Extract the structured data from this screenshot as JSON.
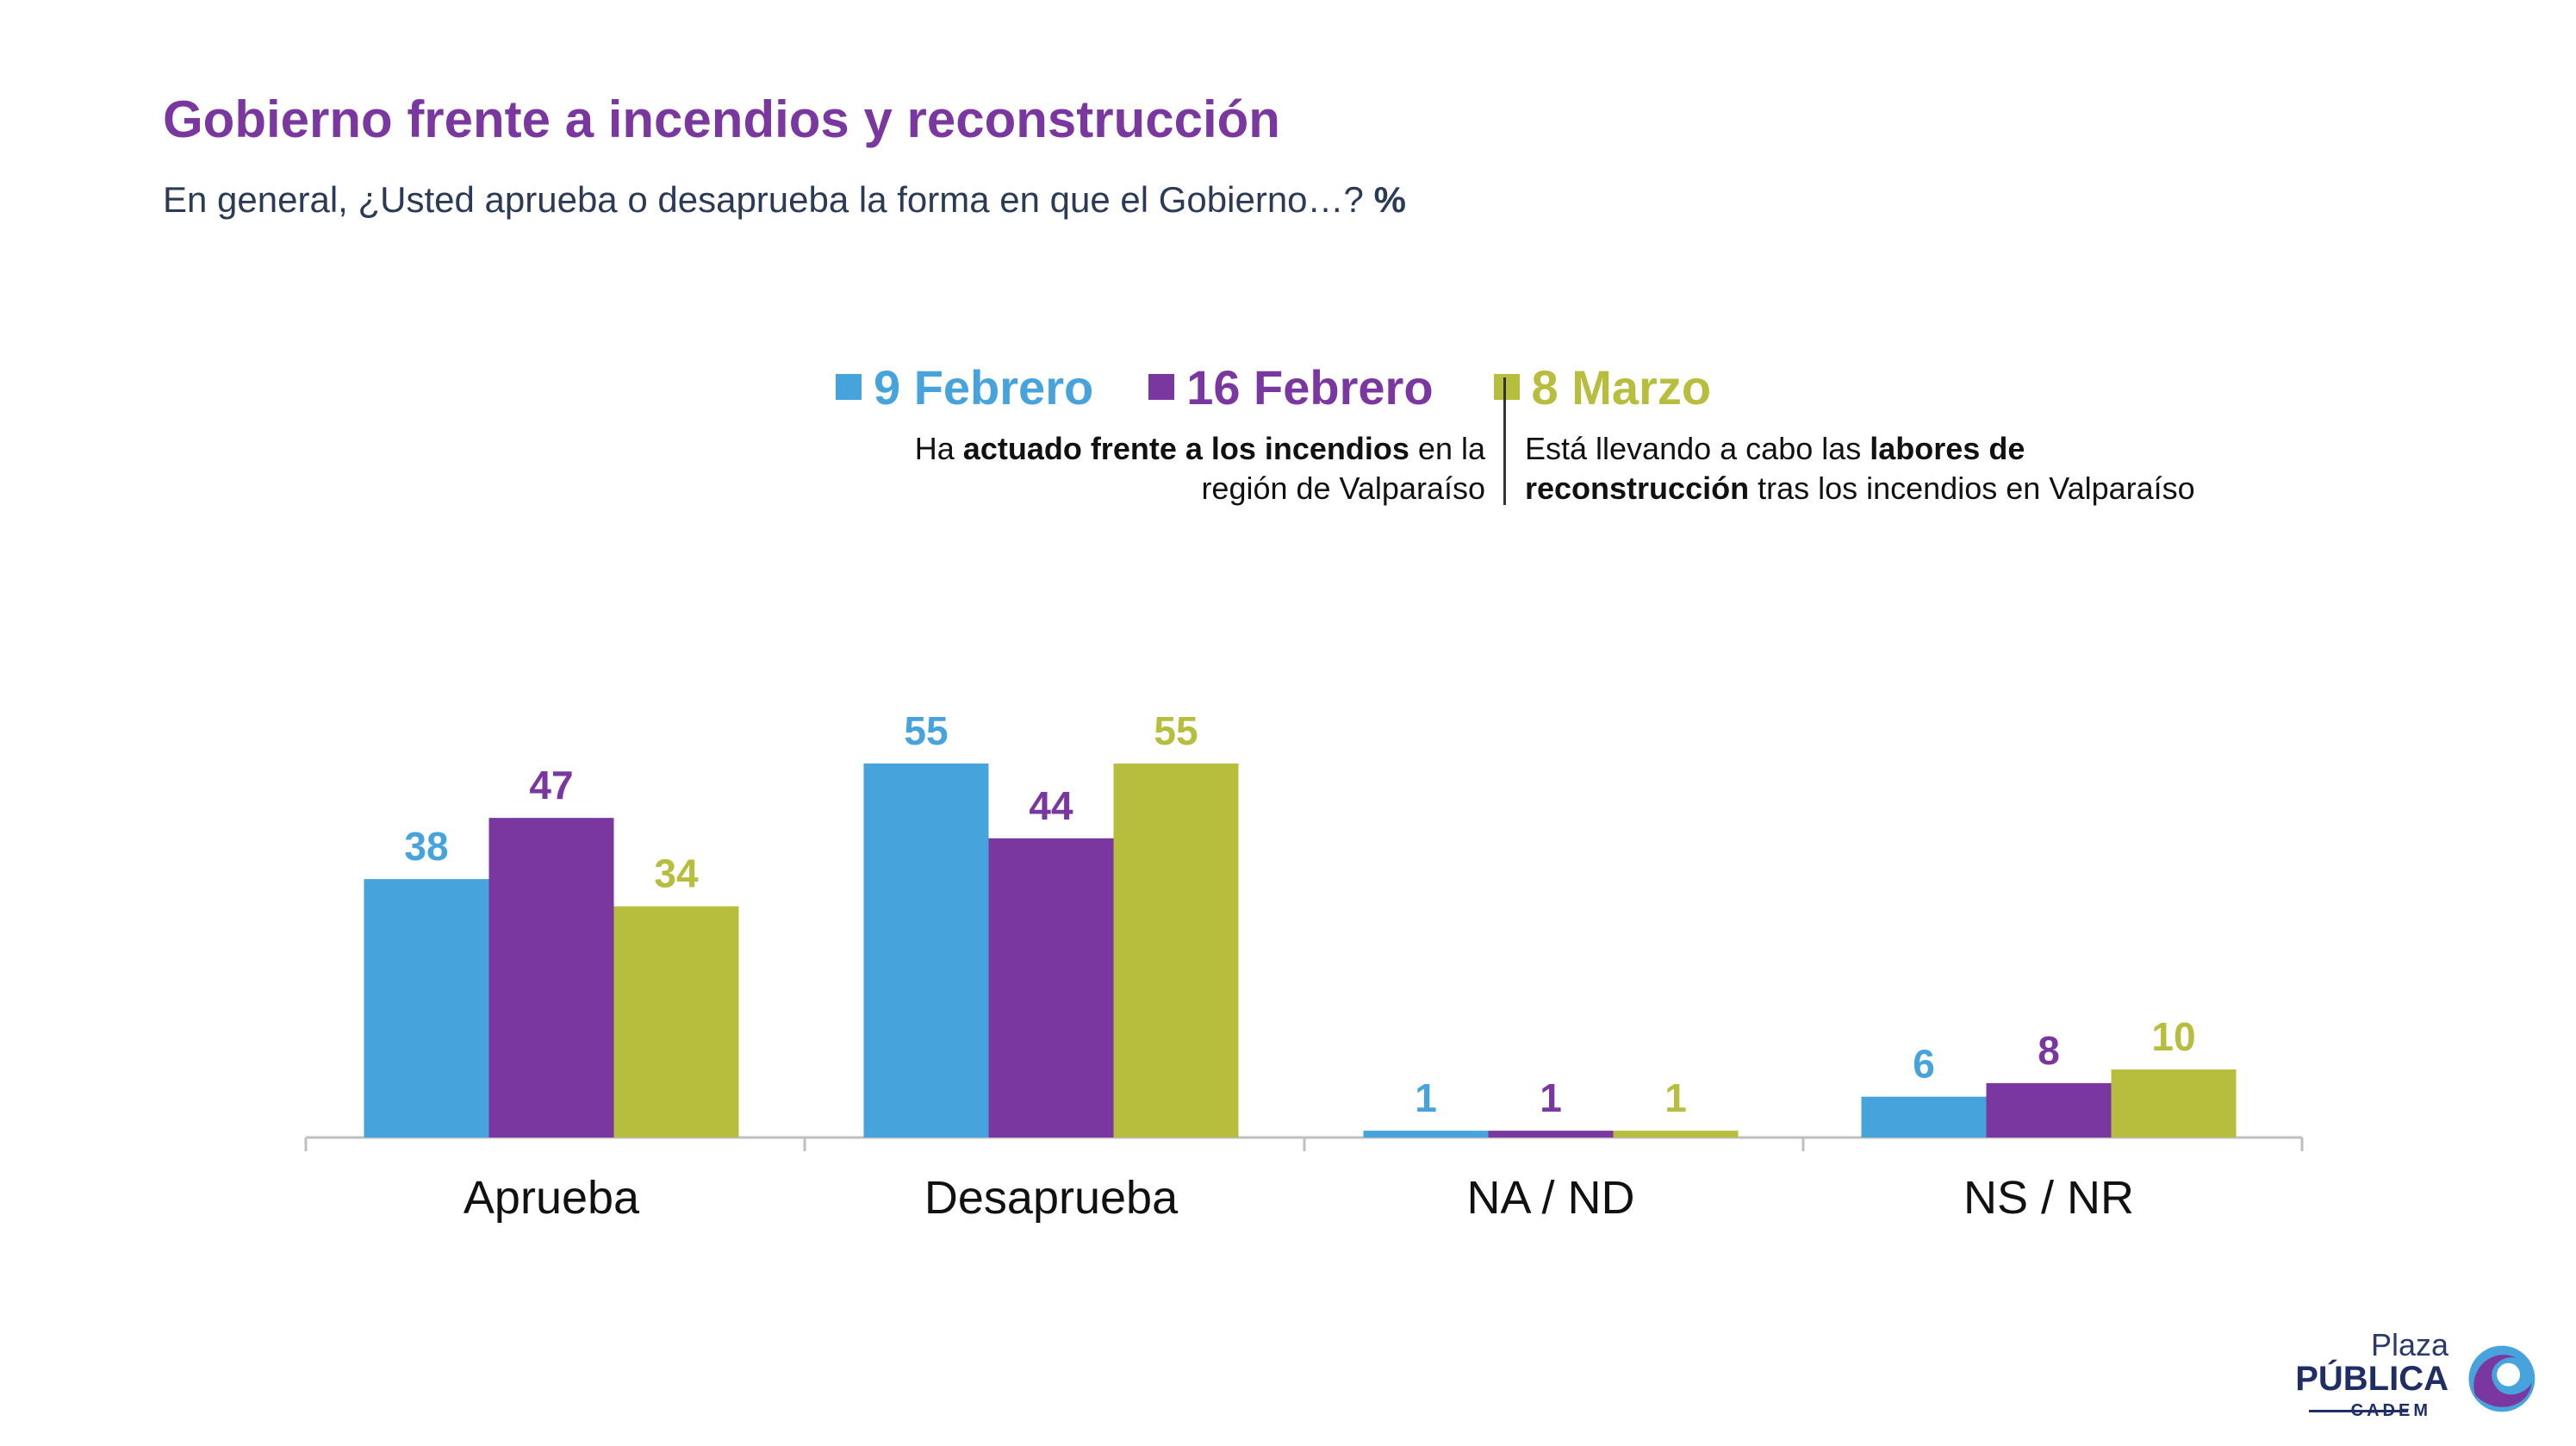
{
  "header": {
    "title": "Gobierno frente a incendios y reconstrucción",
    "subtitle": "En general, ¿Usted aprueba o desaprueba la forma en que el Gobierno…?",
    "subtitle_unit": "%"
  },
  "notes": {
    "left_prefix": "Ha ",
    "left_bold": "actuado frente a los incendios",
    "left_suffix": " en la",
    "left_line2": "región de Valparaíso",
    "right_prefix": "Está llevando a cabo las ",
    "right_bold": "labores de",
    "right_bold2": "reconstrucción",
    "right_suffix": " tras los incendios en Valparaíso"
  },
  "logo": {
    "line1": "Plaza",
    "line2": "PÚBLICA",
    "line3": "CADEM"
  },
  "chart_data": {
    "type": "bar",
    "categories": [
      "Aprueba",
      "Desaprueba",
      "NA / ND",
      "NS / NR"
    ],
    "series": [
      {
        "name": "9 Febrero",
        "color": "#46a3dc",
        "values": [
          38,
          55,
          1,
          6
        ]
      },
      {
        "name": "16 Febrero",
        "color": "#7a37a0",
        "values": [
          47,
          44,
          1,
          8
        ]
      },
      {
        "name": "8 Marzo",
        "color": "#b7bd3c",
        "values": [
          34,
          55,
          1,
          10
        ]
      }
    ],
    "ylim": [
      0,
      60
    ],
    "grid": false,
    "legend": "top-center",
    "data_labels": true
  }
}
